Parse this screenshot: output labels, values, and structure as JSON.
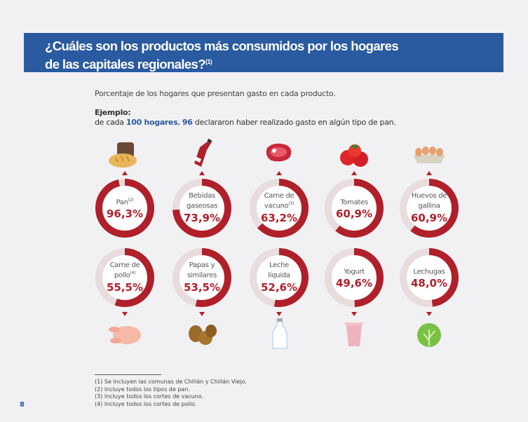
{
  "header": {
    "title_line1": "¿Cuáles son los productos más consumidos por los hogares",
    "title_line2": "de las capitales regionales?",
    "title_note": "(1)"
  },
  "subtitle": "Porcentaje de los hogares que presentan gasto en cada producto.",
  "example": {
    "label": "Ejemplo:",
    "pre": "de cada ",
    "hogares": "100 hogares",
    "comma": ", ",
    "num": "96",
    "post": " declararon haber realizado gasto en algún tipo de pan."
  },
  "colors": {
    "accent": "#b0202a",
    "track": "#e8dcdc",
    "banner": "#2a5aa0"
  },
  "products": [
    {
      "name": "Pan",
      "note": "(2)",
      "value_label": "96,3%",
      "value": 96.3,
      "icon": "bread-icon"
    },
    {
      "name": "Bebidas gaseosas",
      "note": "",
      "value_label": "73,9%",
      "value": 73.9,
      "icon": "soda-bottle-icon"
    },
    {
      "name": "Carne de vacuno",
      "note": "(3)",
      "value_label": "63,2%",
      "value": 63.2,
      "icon": "beef-steak-icon"
    },
    {
      "name": "Tomates",
      "note": "",
      "value_label": "60,9%",
      "value": 60.9,
      "icon": "tomato-icon"
    },
    {
      "name": "Huevos de gallina",
      "note": "",
      "value_label": "60,9%",
      "value": 60.9,
      "icon": "eggs-icon"
    },
    {
      "name": "Carne de pollo",
      "note": "(4)",
      "value_label": "55,5%",
      "value": 55.5,
      "icon": "chicken-icon"
    },
    {
      "name": "Papas y similares",
      "note": "",
      "value_label": "53,5%",
      "value": 53.5,
      "icon": "potato-icon"
    },
    {
      "name": "Leche líquida",
      "note": "",
      "value_label": "52,6%",
      "value": 52.6,
      "icon": "milk-bottle-icon"
    },
    {
      "name": "Yogurt",
      "note": "",
      "value_label": "49,6%",
      "value": 49.6,
      "icon": "yogurt-icon"
    },
    {
      "name": "Lechugas",
      "note": "",
      "value_label": "48,0%",
      "value": 48.0,
      "icon": "lettuce-icon"
    }
  ],
  "footnotes": [
    "(1)  Se incluyen las comunas de Chillán y Chillán Viejo.",
    "(2)  Incluye todos los tipos de pan.",
    "(3)  Incluye todos los cortes de vacuno.",
    "(4)  Incluye todos los cortes de pollo."
  ],
  "page_number": "8"
}
